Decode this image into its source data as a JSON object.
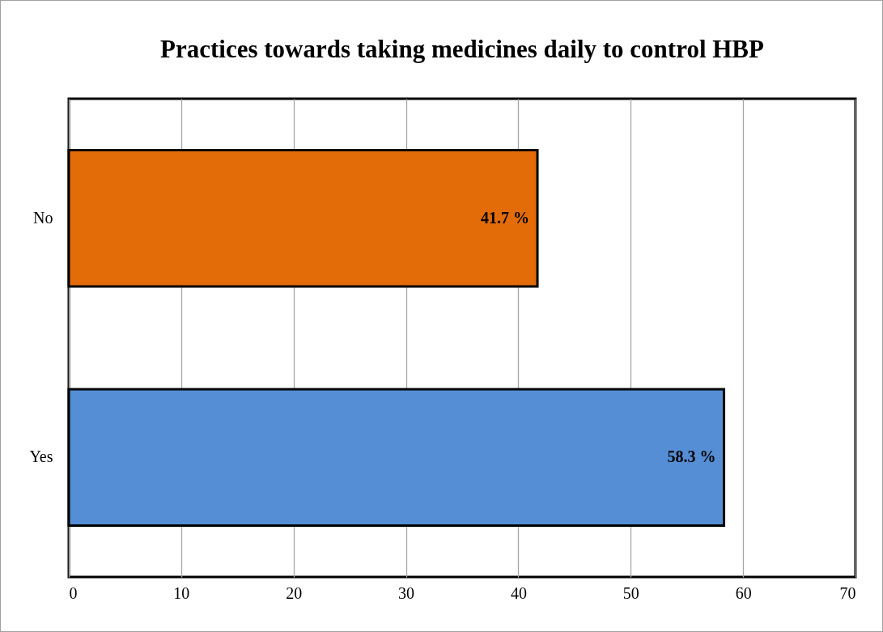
{
  "chart_data": {
    "type": "bar",
    "orientation": "horizontal",
    "title": "Practices towards taking medicines daily to control HBP",
    "categories": [
      "No",
      "Yes"
    ],
    "values": [
      41.7,
      58.3
    ],
    "colors": [
      "#e36c09",
      "#558ed5"
    ],
    "value_labels": [
      "41.7 %",
      "58.3 %"
    ],
    "xlim": [
      0,
      70
    ],
    "xticks": [
      0,
      10,
      20,
      30,
      40,
      50,
      60,
      70
    ],
    "grid": "x"
  }
}
